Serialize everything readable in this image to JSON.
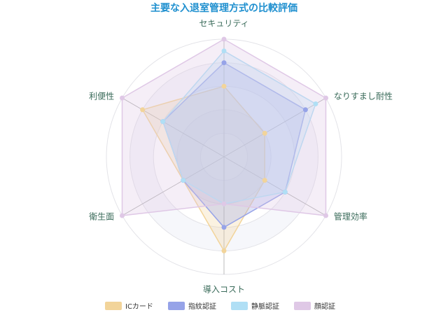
{
  "chart_data": {
    "type": "radar",
    "title": "主要な入退室管理方式の比較評価",
    "categories": [
      "セキュリティ",
      "なりすまし耐性",
      "管理効率",
      "導入コスト",
      "衛生面",
      "利便性"
    ],
    "rlim": [
      0,
      5
    ],
    "rticks": [
      1,
      2,
      3,
      4,
      5
    ],
    "series": [
      {
        "name": "ICカード",
        "color": "#f2d49a",
        "values": [
          3,
          2,
          2,
          4,
          2,
          4
        ]
      },
      {
        "name": "指紋認証",
        "color": "#96a3e8",
        "values": [
          4,
          4,
          3,
          3,
          2,
          3
        ]
      },
      {
        "name": "静脈認証",
        "color": "#b0dff5",
        "values": [
          4.5,
          4.5,
          3,
          2,
          2,
          3
        ]
      },
      {
        "name": "顔認証",
        "color": "#dfc8e6",
        "values": [
          5,
          5,
          5,
          2,
          5,
          5
        ]
      }
    ]
  }
}
